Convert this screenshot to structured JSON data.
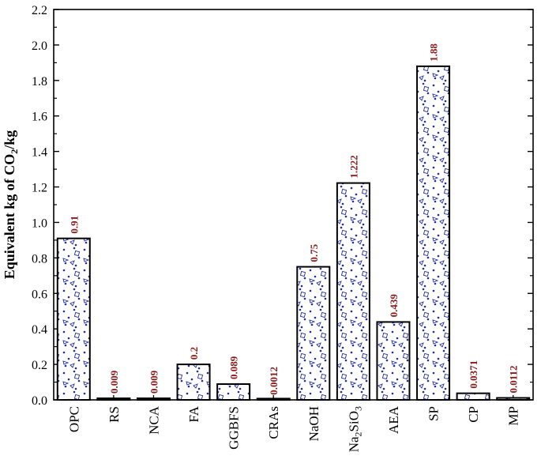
{
  "chart_data": {
    "type": "bar",
    "categories": [
      "OPC",
      "RS",
      "NCA",
      "FA",
      "GGBFS",
      "CRAs",
      "NaOH",
      "Na2SiO3",
      "AEA",
      "SP",
      "CP",
      "MP"
    ],
    "values": [
      0.91,
      0.009,
      0.009,
      0.2,
      0.089,
      0.0012,
      0.75,
      1.222,
      0.439,
      1.88,
      0.0371,
      0.0112
    ],
    "value_labels": [
      "0.91",
      "0.009",
      "0.009",
      "0.2",
      "0.089",
      "0.0012",
      "0.75",
      "1.222",
      "0.439",
      "1.88",
      "0.0371",
      "0.0112"
    ],
    "yticks": [
      "0.0",
      "0.2",
      "0.4",
      "0.6",
      "0.8",
      "1.0",
      "1.2",
      "1.4",
      "1.6",
      "1.8",
      "2.0",
      "2.2"
    ],
    "ylim": [
      0,
      2.2
    ],
    "ylabel": "Equivalent kg of CO2/kg",
    "xlabel": "",
    "title": "",
    "grid": false,
    "colors": {
      "bar_edge": "#000000",
      "pattern": "#1f2c9e",
      "value_label": "#8b1a1a"
    }
  }
}
